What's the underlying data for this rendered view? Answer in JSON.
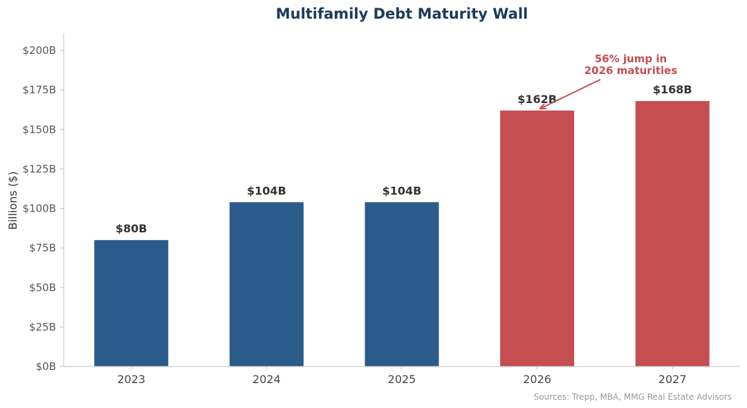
{
  "chart_data": {
    "type": "bar",
    "title": "Multifamily Debt Maturity Wall",
    "xlabel": "",
    "ylabel": "Billions ($)",
    "categories": [
      "2023",
      "2024",
      "2025",
      "2026",
      "2027"
    ],
    "values": [
      80,
      104,
      104,
      162,
      168
    ],
    "data_labels": [
      "$80B",
      "$104B",
      "$104B",
      "$162B",
      "$168B"
    ],
    "bar_colors": [
      "#2b5b8b",
      "#2b5b8b",
      "#2b5b8b",
      "#c44e52",
      "#c44e52"
    ],
    "ylim": [
      0,
      210
    ],
    "yticks": [
      0,
      25,
      50,
      75,
      100,
      125,
      150,
      175,
      200
    ],
    "ytick_labels": [
      "$0B",
      "$25B",
      "$50B",
      "$75B",
      "$100B",
      "$125B",
      "$150B",
      "$175B",
      "$200B"
    ],
    "grid": false,
    "annotation": {
      "line1": "56% jump in",
      "line2": "2026 maturities",
      "target_category": "2026",
      "target_value": 162,
      "color": "#c44e52"
    },
    "source": "Sources: Trepp, MBA, MMG Real Estate Advisors"
  }
}
